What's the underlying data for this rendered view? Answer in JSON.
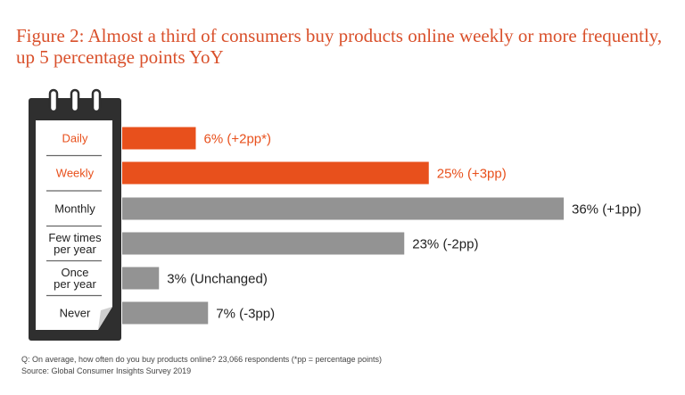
{
  "chart_data": {
    "type": "bar",
    "orientation": "horizontal",
    "title": "Figure 2: Almost a third of consumers buy products online weekly or more frequently, up 5 percentage points YoY",
    "categories": [
      [
        "Daily"
      ],
      [
        "Weekly"
      ],
      [
        "Monthly"
      ],
      [
        "Few times",
        "per year"
      ],
      [
        "Once",
        "per year"
      ],
      [
        "Never"
      ]
    ],
    "values": [
      6,
      25,
      36,
      23,
      3,
      7
    ],
    "value_labels": [
      "6% (+2pp*)",
      "25% (+3pp)",
      "36% (+1pp)",
      "23% (-2pp)",
      "3% (Unchanged)",
      "7% (-3pp)"
    ],
    "highlight": [
      true,
      true,
      false,
      false,
      false,
      false
    ],
    "xlim": [
      0,
      36
    ],
    "grid": false,
    "colors": {
      "highlight": "#e8501c",
      "default": "#939393",
      "highlight_text": "#e8501c",
      "text": "#222222",
      "title": "#d9502b",
      "calendar_border": "#444444",
      "calendar_fill": "#ffffff",
      "calendar_frame": "#2f2f2f"
    }
  },
  "footer": {
    "question": "Q: On average, how often do you buy products online?  23,066 respondents (*pp = percentage points)",
    "source": "Source: Global Consumer Insights Survey 2019"
  }
}
